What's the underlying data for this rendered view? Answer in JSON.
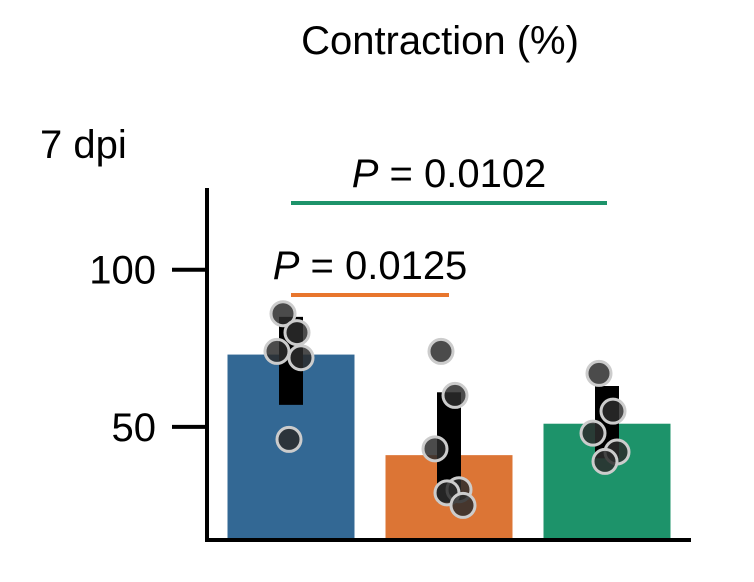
{
  "chart_data": {
    "type": "bar",
    "title": "Contraction (%)",
    "panel_label": "7 dpi",
    "ylabel": "",
    "xlabel": "",
    "ylim": [
      14,
      126
    ],
    "yticks": [
      50,
      100
    ],
    "categories": [
      "",
      "",
      ""
    ],
    "bars": [
      {
        "value": 73,
        "color": "#336894",
        "err_low": 57,
        "err_high": 85,
        "points": [
          86,
          80,
          74,
          72,
          46
        ]
      },
      {
        "value": 41,
        "color": "#dc7535",
        "err_low": 26,
        "err_high": 61,
        "points": [
          74,
          60,
          43,
          30,
          29,
          25
        ]
      },
      {
        "value": 51,
        "color": "#1d936a",
        "err_low": 40,
        "err_high": 63,
        "points": [
          67,
          55,
          48,
          42,
          39
        ]
      }
    ],
    "comparisons": [
      {
        "p_symbol": "P",
        "p_text": " = 0.0125",
        "from": 0,
        "to": 1,
        "color": "#e8762d",
        "level": 1
      },
      {
        "p_symbol": "P",
        "p_text": " = 0.0102",
        "from": 0,
        "to": 2,
        "color": "#1d936a",
        "level": 2
      }
    ]
  }
}
